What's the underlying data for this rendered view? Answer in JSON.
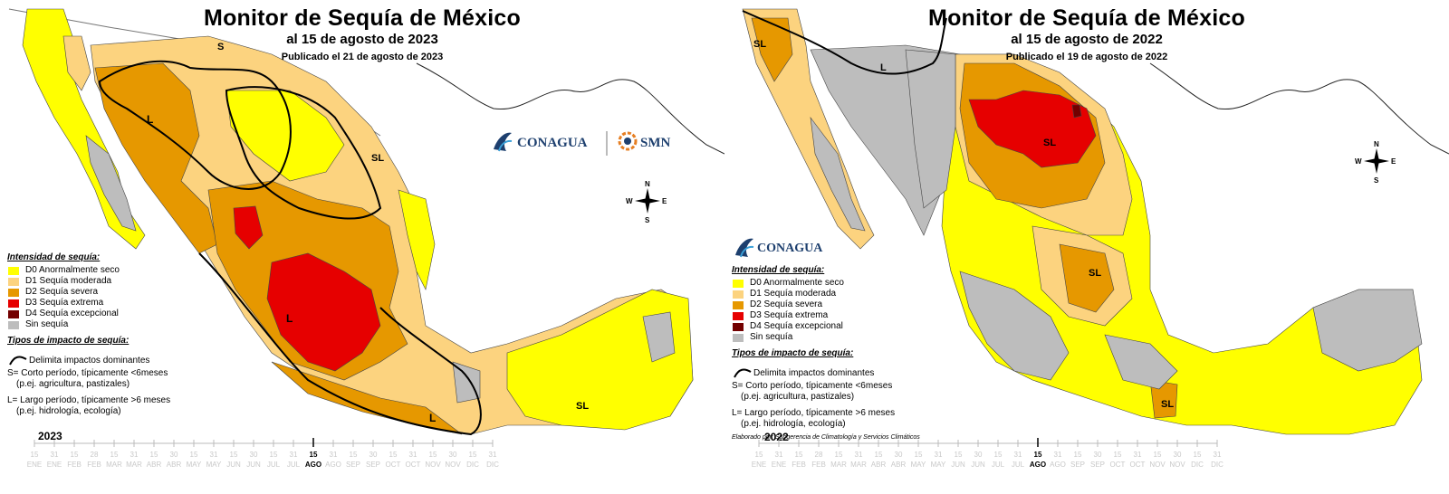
{
  "colors": {
    "d0": "#ffff00",
    "d1": "#fcd37f",
    "d2": "#e69800",
    "d3": "#e60000",
    "d4": "#730000",
    "none": "#bdbdbd",
    "conagua_blue": "#1d3f6e",
    "smn_orange": "#e67e22"
  },
  "legend": {
    "intensity_heading": "Intensidad de sequía:",
    "items": [
      {
        "code": "d0",
        "label": "D0 Anormalmente seco"
      },
      {
        "code": "d1",
        "label": "D1 Sequía moderada"
      },
      {
        "code": "d2",
        "label": "D2 Sequía severa"
      },
      {
        "code": "d3",
        "label": "D3 Sequía extrema"
      },
      {
        "code": "d4",
        "label": "D4 Sequía excepcional"
      },
      {
        "code": "none",
        "label": "Sin sequía"
      }
    ],
    "impact_heading": "Tipos de impacto de sequía:",
    "boundary_label": "Delimita impactos dominantes",
    "short_line1": "S= Corto período, típicamente <6meses",
    "short_line2": "(p.ej. agricultura, pastizales)",
    "long_line1": "L= Largo período, típicamente >6 meses",
    "long_line2": "(p.ej. hidrología, ecología)"
  },
  "panels": [
    {
      "title": "Monitor de Sequía de México",
      "subtitle": "al 15 de agosto de 2023",
      "published": "Publicado el 21 de agosto de 2023",
      "year": "2023",
      "logos": {
        "conagua": "CONAGUA",
        "smn": "SMN"
      },
      "region_labels": [
        "S",
        "SL",
        "L",
        "L",
        "L",
        "SL"
      ],
      "timeline_marker": "15",
      "timeline_marker_month": "AGO"
    },
    {
      "title": "Monitor de Sequía de México",
      "subtitle": "al 15 de agosto de 2022",
      "published": "Publicado el 19 de agosto de 2022",
      "year": "2022",
      "credit": "Elaborado por: Subgerencia de Climatología y Servicios Climáticos",
      "logos": {
        "conagua": "CONAGUA"
      },
      "region_labels": [
        "SL",
        "L",
        "SL",
        "SL",
        "SL"
      ],
      "timeline_marker": "15",
      "timeline_marker_month": "AGO"
    }
  ],
  "compass": {
    "n": "N",
    "s": "S",
    "e": "E",
    "w": "W"
  },
  "timeline": {
    "day_labels": [
      "15",
      "31",
      "15",
      "28",
      "15",
      "31",
      "15",
      "30",
      "15",
      "31",
      "15",
      "30",
      "15",
      "31",
      "15",
      "31",
      "15",
      "30",
      "15",
      "31",
      "15",
      "30",
      "15",
      "31"
    ],
    "month_labels": [
      "ENE",
      "ENE",
      "FEB",
      "FEB",
      "MAR",
      "MAR",
      "ABR",
      "ABR",
      "MAY",
      "MAY",
      "JUN",
      "JUN",
      "JUL",
      "JUL",
      "AGO",
      "AGO",
      "SEP",
      "SEP",
      "OCT",
      "OCT",
      "NOV",
      "NOV",
      "DIC",
      "DIC"
    ]
  }
}
